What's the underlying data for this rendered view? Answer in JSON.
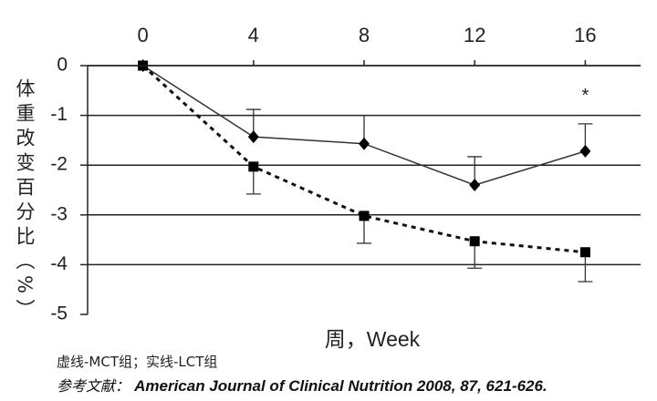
{
  "chart_data": {
    "type": "line",
    "x_label": "周，Week",
    "y_label": "体重改变百分比（%）",
    "annotation": "*",
    "note": "虚线-MCT组；实线-LCT组",
    "reference_prefix": "参考文献：",
    "reference": "American Journal of Clinical Nutrition 2008, 87, 621-626.",
    "x": [
      0,
      4,
      8,
      12,
      16
    ],
    "xlim": [
      -2,
      18
    ],
    "xticks": [
      0,
      4,
      8,
      12,
      16
    ],
    "ylim": [
      -5,
      0
    ],
    "yticks": [
      0,
      -1,
      -2,
      -3,
      -4,
      -5
    ],
    "grid": true,
    "series": [
      {
        "color": "#333333",
        "dashed": false,
        "marker": "diamond",
        "error_side": "up",
        "values": [
          0,
          -1.43,
          -1.57,
          -2.4,
          -1.72
        ],
        "errors": [
          0,
          0.55,
          0.57,
          0.57,
          0.55
        ]
      },
      {
        "color": "#111111",
        "dashed": true,
        "marker": "square",
        "error_side": "down",
        "values": [
          0,
          -2.03,
          -3.02,
          -3.53,
          -3.75
        ],
        "errors": [
          0,
          0.55,
          0.55,
          0.54,
          0.59
        ]
      }
    ]
  }
}
